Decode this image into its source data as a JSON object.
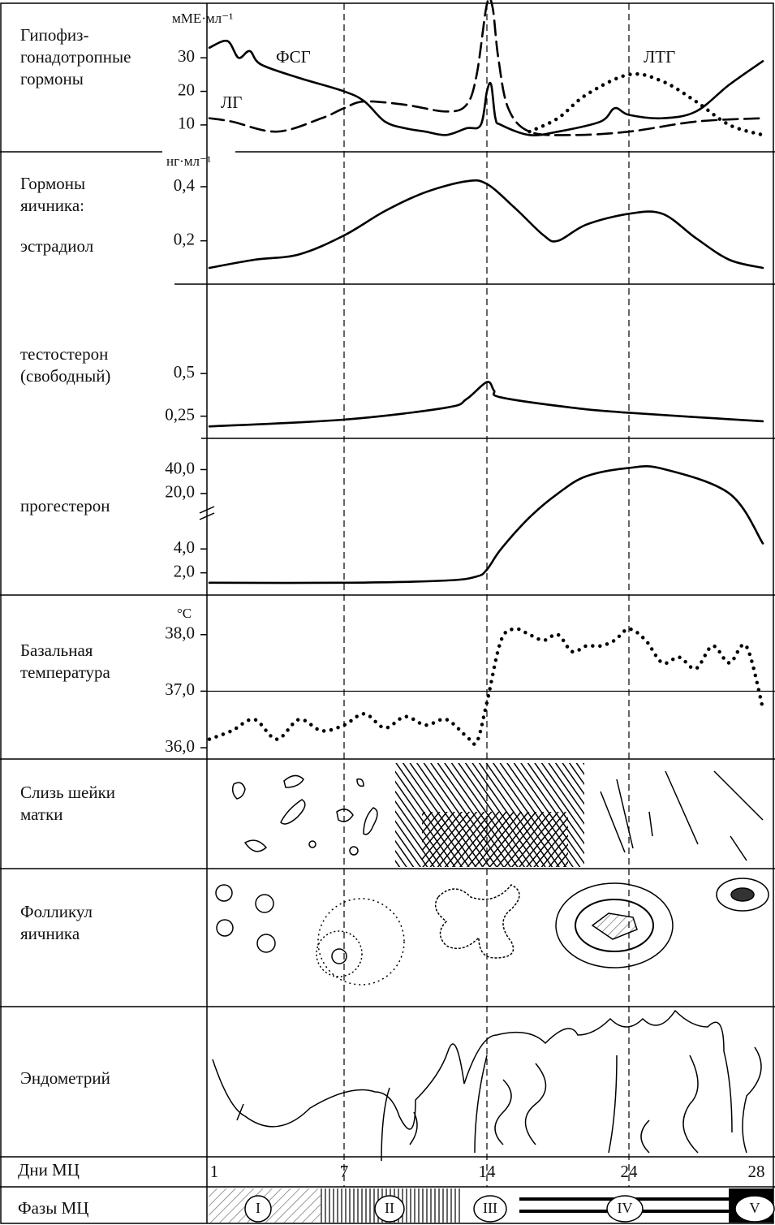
{
  "x_axis": {
    "label": "Дни МЦ",
    "ticks": [
      1,
      7,
      14,
      24,
      28
    ],
    "xlim": [
      1,
      28
    ]
  },
  "phases": {
    "label": "Фазы МЦ",
    "items": [
      "I",
      "II",
      "III",
      "IV",
      "V"
    ]
  },
  "rows": {
    "mucus": [
      "Слизь шейки",
      "матки"
    ],
    "follicle": [
      "Фолликул",
      "яичника"
    ],
    "endometrium": [
      "Эндометрий"
    ]
  },
  "chart_data": [
    {
      "type": "line",
      "label": [
        "Гипофиз-",
        "гонадотропные",
        "гормоны"
      ],
      "unit": "мМЕ·мл⁻¹",
      "ylim": [
        2,
        46
      ],
      "yticks": [
        10,
        20,
        30
      ],
      "series": [
        {
          "name": "ФСГ",
          "color": "#000",
          "style": "solid",
          "x": [
            1,
            1.8,
            2.3,
            2.8,
            3.3,
            5,
            7,
            8,
            9,
            10,
            11,
            12,
            13,
            13.7,
            14,
            14.3,
            14.6,
            15,
            17,
            19,
            22,
            23,
            24,
            25,
            26,
            27,
            28
          ],
          "values": [
            33,
            35,
            30,
            32,
            28,
            24,
            20,
            17,
            11,
            9,
            8,
            7,
            9,
            10,
            20,
            22,
            12,
            10,
            7,
            8,
            11,
            15,
            13,
            12,
            14,
            22,
            29
          ]
        },
        {
          "name": "ЛГ",
          "color": "#000",
          "style": "dashed",
          "x": [
            1,
            2,
            4,
            6,
            7,
            8,
            10,
            12,
            13,
            13.5,
            14,
            14.4,
            14.8,
            15.5,
            17,
            20,
            24,
            26,
            28
          ],
          "values": [
            12,
            11,
            8,
            12,
            15,
            17,
            16,
            14,
            16,
            25,
            46,
            45,
            30,
            15,
            8,
            7,
            8,
            11,
            12
          ]
        },
        {
          "name": "ЛТГ",
          "color": "#000",
          "style": "dotted",
          "x": [
            17,
            19,
            21,
            24,
            25,
            26,
            27,
            28
          ],
          "values": [
            8,
            12,
            19,
            25,
            23,
            17,
            10,
            7
          ]
        }
      ]
    },
    {
      "type": "line",
      "group_label": [
        "Гормоны",
        "яичника:"
      ],
      "label": [
        "эстрадиол"
      ],
      "unit": "нг·мл⁻¹",
      "ylim": [
        0.04,
        0.52
      ],
      "yticks": [
        {
          "value": 0.2,
          "label": "0,2"
        },
        {
          "value": 0.4,
          "label": "0,4"
        }
      ],
      "series": [
        {
          "color": "#000",
          "style": "solid",
          "x": [
            1,
            3,
            5,
            7,
            9,
            11,
            13,
            14,
            16,
            18,
            19,
            21,
            24,
            25,
            26,
            27,
            28
          ],
          "values": [
            0.1,
            0.13,
            0.15,
            0.22,
            0.31,
            0.38,
            0.42,
            0.41,
            0.32,
            0.22,
            0.2,
            0.26,
            0.3,
            0.3,
            0.21,
            0.13,
            0.1
          ]
        }
      ]
    },
    {
      "type": "line",
      "label": [
        "тестостерон",
        "(свободный)"
      ],
      "ylim": [
        0.12,
        1.0
      ],
      "yticks": [
        {
          "value": 0.25,
          "label": "0,25"
        },
        {
          "value": 0.5,
          "label": "0,5"
        }
      ],
      "series": [
        {
          "color": "#000",
          "style": "solid",
          "x": [
            1,
            7,
            12,
            13,
            14,
            14.5,
            15,
            20,
            24,
            28
          ],
          "values": [
            0.19,
            0.23,
            0.3,
            0.35,
            0.45,
            0.4,
            0.36,
            0.3,
            0.27,
            0.22
          ]
        }
      ]
    },
    {
      "type": "line",
      "label": [
        "прогестерон"
      ],
      "log_scale": true,
      "ylim": [
        1.05,
        88
      ],
      "yticks": [
        {
          "value": 2,
          "label": "2,0"
        },
        {
          "value": 4,
          "label": "4,0"
        },
        {
          "value": 20,
          "label": "20,0"
        },
        {
          "value": 40,
          "label": "40,0"
        }
      ],
      "series": [
        {
          "color": "#000",
          "style": "solid",
          "x": [
            1,
            7,
            12,
            13.5,
            14,
            15,
            17,
            19,
            21,
            24,
            25,
            27,
            28
          ],
          "values": [
            1.5,
            1.5,
            1.6,
            1.8,
            2.2,
            4,
            10,
            20,
            33,
            42,
            41,
            20,
            4.7
          ]
        }
      ]
    },
    {
      "type": "line",
      "label": [
        "Базальная",
        "температура"
      ],
      "unit": "°C",
      "ylim": [
        35.8,
        38.6
      ],
      "yticks": [
        {
          "value": 36,
          "label": "36,0"
        },
        {
          "value": 37,
          "label": "37,0"
        },
        {
          "value": 38,
          "label": "38,0"
        }
      ],
      "reference_line": 37,
      "series": [
        {
          "color": "#000",
          "style": "dotted",
          "x": [
            1,
            2,
            3,
            4,
            5,
            6,
            7,
            8,
            9,
            10,
            11,
            12,
            13,
            13.5,
            14,
            15,
            16,
            17,
            18,
            19,
            20,
            21,
            22,
            23,
            24,
            24.5,
            25,
            25.5,
            26,
            26.5,
            27,
            27.5,
            28
          ],
          "values": [
            36.15,
            36.3,
            36.5,
            36.15,
            36.5,
            36.3,
            36.4,
            36.6,
            36.35,
            36.55,
            36.4,
            36.5,
            36.2,
            36.1,
            36.8,
            37.9,
            38.1,
            38.0,
            37.9,
            38.0,
            37.7,
            37.8,
            37.8,
            37.9,
            38.1,
            37.9,
            37.5,
            37.6,
            37.4,
            37.8,
            37.5,
            37.8,
            36.7
          ]
        }
      ]
    }
  ]
}
